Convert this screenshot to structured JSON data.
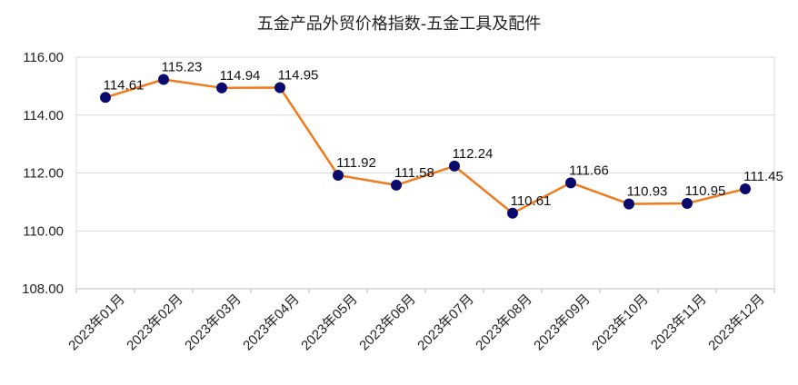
{
  "chart_data": {
    "type": "line",
    "title": "五金产品外贸价格指数-五金工具及配件",
    "categories": [
      "2023年01月",
      "2023年02月",
      "2023年03月",
      "2023年04月",
      "2023年05月",
      "2023年06月",
      "2023年07月",
      "2023年08月",
      "2023年09月",
      "2023年10月",
      "2023年11月",
      "2023年12月"
    ],
    "series": [
      {
        "values": [
          114.61,
          115.23,
          114.94,
          114.95,
          111.92,
          111.58,
          112.24,
          110.61,
          111.66,
          110.93,
          110.95,
          111.45
        ]
      }
    ],
    "data_labels": [
      "114.61",
      "115.23",
      "114.94",
      "114.95",
      "111.92",
      "111.58",
      "112.24",
      "110.61",
      "111.66",
      "110.93",
      "110.95",
      "111.45"
    ],
    "yticks": [
      "108.00",
      "110.00",
      "112.00",
      "114.00",
      "116.00"
    ],
    "ylim": [
      108,
      116
    ],
    "grid": true,
    "legend": false,
    "colors": {
      "line": "#F07A1C",
      "marker": "#0B0B6E",
      "grid": "#D9D9D9",
      "axis": "#BFBFBF"
    }
  }
}
